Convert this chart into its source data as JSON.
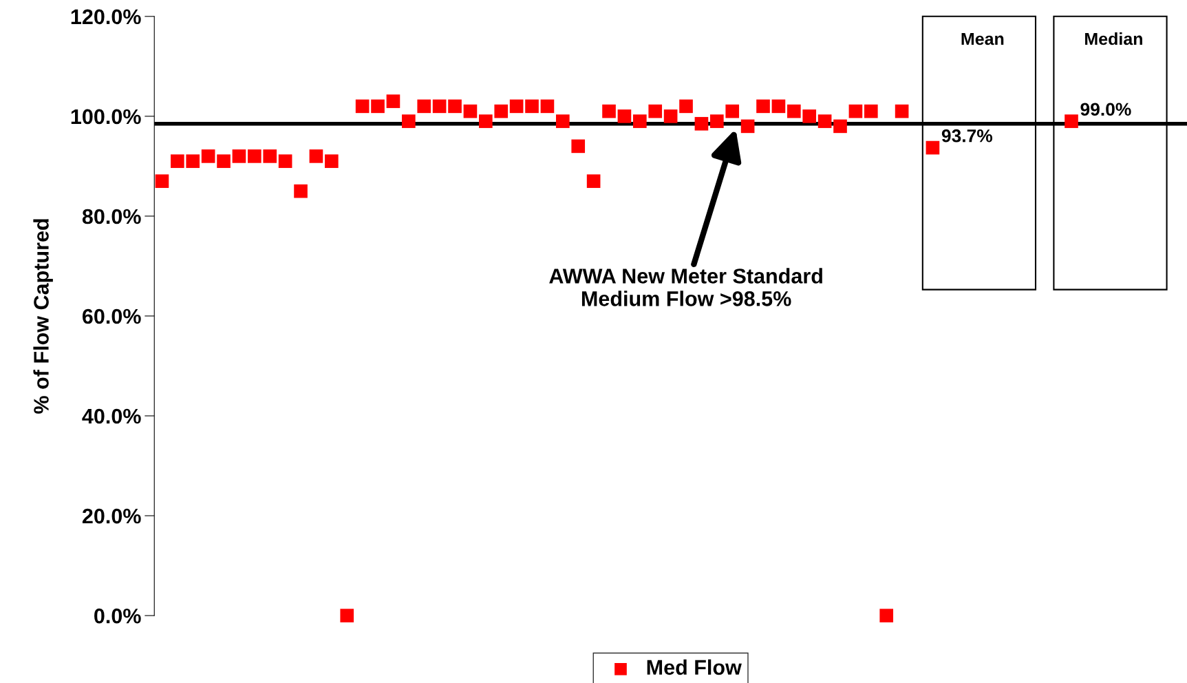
{
  "chart_data": {
    "type": "scatter",
    "ylabel": "% of Flow Captured",
    "categories": [
      null,
      null,
      null,
      null,
      null,
      null,
      null,
      null,
      null,
      null,
      null,
      null,
      null,
      null,
      null,
      null,
      null,
      null,
      null,
      null,
      null,
      null,
      null,
      null,
      null,
      null,
      null,
      null,
      null,
      null,
      null,
      null,
      null,
      null,
      null,
      null,
      null,
      null,
      null,
      null,
      null,
      null,
      null,
      null,
      null,
      null,
      null,
      null,
      null,
      null,
      null,
      null,
      null,
      null,
      null,
      null,
      null,
      null,
      null,
      null,
      null,
      null,
      null,
      null,
      null,
      null,
      null
    ],
    "series": [
      {
        "name": "Med Flow",
        "color": "#ff0000",
        "values": [
          87,
          91,
          91,
          92,
          91,
          92,
          92,
          92,
          91,
          85,
          92,
          91,
          0,
          102,
          102,
          103,
          99,
          102,
          102,
          102,
          101,
          99,
          101,
          102,
          102,
          102,
          99,
          94,
          87,
          101,
          100,
          99,
          101,
          100,
          102,
          98.5,
          99,
          101,
          98,
          102,
          102,
          101,
          100,
          99,
          98,
          101,
          101,
          0,
          101,
          null,
          93.7,
          null,
          null,
          null,
          null,
          null,
          null,
          null,
          null,
          99.0,
          null,
          null,
          null,
          null,
          null,
          null,
          null
        ],
        "value_labels": [
          null,
          null,
          null,
          null,
          null,
          null,
          null,
          null,
          null,
          null,
          null,
          null,
          null,
          null,
          null,
          null,
          null,
          null,
          null,
          null,
          null,
          null,
          null,
          null,
          null,
          null,
          null,
          null,
          null,
          null,
          null,
          null,
          null,
          null,
          null,
          null,
          null,
          null,
          null,
          null,
          null,
          null,
          null,
          null,
          null,
          null,
          null,
          null,
          null,
          null,
          "93.7%",
          null,
          null,
          null,
          null,
          null,
          null,
          null,
          null,
          "99.0%",
          null,
          null,
          null,
          null,
          null,
          null,
          null
        ]
      }
    ],
    "ylim": [
      0,
      120
    ],
    "yticks": [
      {
        "value": 0,
        "label": "0.0%"
      },
      {
        "value": 20,
        "label": "20.0%"
      },
      {
        "value": 40,
        "label": "40.0%"
      },
      {
        "value": 60,
        "label": "60.0%"
      },
      {
        "value": 80,
        "label": "80.0%"
      },
      {
        "value": 100,
        "label": "100.0%"
      },
      {
        "value": 120,
        "label": "120.0%"
      }
    ],
    "ref_lines": [
      {
        "axis": "y",
        "value": 98.5,
        "label": "AWWA New Meter Standard\nMedium Flow >98.5%",
        "color": "#000000"
      }
    ],
    "annotations": [
      "Mean",
      "Median"
    ],
    "marker": "square",
    "grid": false,
    "legend": "bottom",
    "tick_labels": "y"
  }
}
